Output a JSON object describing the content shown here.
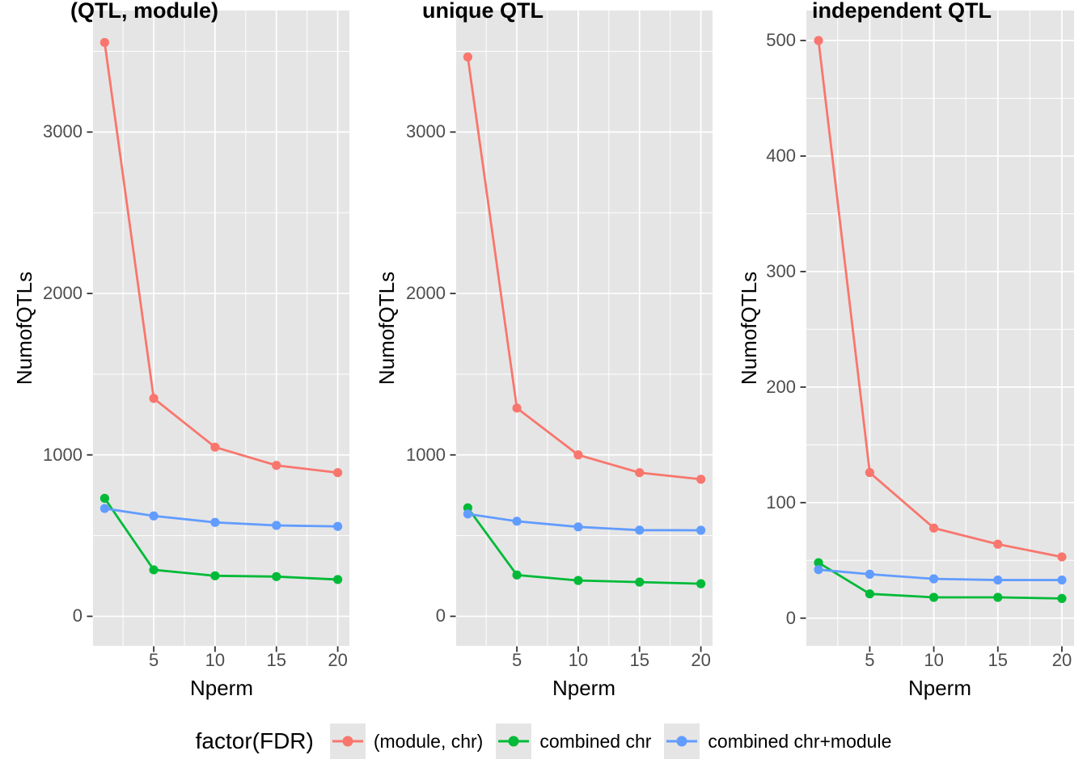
{
  "figure": {
    "x_axis_label": "Nperm",
    "y_axis_label": "NumofQTLs",
    "background_color": "#FFFFFF",
    "panel_background_color": "#E5E5E5",
    "gridline_color": "#FFFFFF",
    "tick_label_color": "#4D4D4D"
  },
  "legend": {
    "title": "factor(FDR)",
    "position": "bottom",
    "items": [
      {
        "label": "(module, chr)",
        "color": "#F8766D"
      },
      {
        "label": "combined chr",
        "color": "#00BA38"
      },
      {
        "label": "combined chr+module",
        "color": "#619CFF"
      }
    ]
  },
  "chart_data": [
    {
      "type": "line",
      "title": "(QTL, module)",
      "xlabel": "Nperm",
      "ylabel": "NumofQTLs",
      "x": [
        1,
        5,
        10,
        15,
        20
      ],
      "x_ticks": [
        5,
        10,
        15,
        20
      ],
      "x_minor": [
        2.5,
        7.5,
        12.5,
        17.5
      ],
      "series": [
        {
          "name": "(module, chr)",
          "color": "#F8766D",
          "values": [
            3555,
            1350,
            1048,
            935,
            890
          ]
        },
        {
          "name": "combined chr",
          "color": "#00BA38",
          "values": [
            731,
            288,
            251,
            246,
            228
          ]
        },
        {
          "name": "combined chr+module",
          "color": "#619CFF",
          "values": [
            668,
            622,
            582,
            563,
            557
          ]
        }
      ],
      "y_ticks": [
        0,
        1000,
        2000,
        3000
      ],
      "y_minor": [
        500,
        1500,
        2500,
        3500
      ],
      "ylim": [
        -183,
        3753
      ],
      "xlim": [
        0.05,
        20.95
      ],
      "grid": true
    },
    {
      "type": "line",
      "title": "unique QTL",
      "xlabel": "Nperm",
      "ylabel": "NumofQTLs",
      "x": [
        1,
        5,
        10,
        15,
        20
      ],
      "x_ticks": [
        5,
        10,
        15,
        20
      ],
      "x_minor": [
        2.5,
        7.5,
        12.5,
        17.5
      ],
      "series": [
        {
          "name": "(module, chr)",
          "color": "#F8766D",
          "values": [
            3465,
            1290,
            1000,
            890,
            849
          ]
        },
        {
          "name": "combined chr",
          "color": "#00BA38",
          "values": [
            672,
            256,
            222,
            212,
            202
          ]
        },
        {
          "name": "combined chr+module",
          "color": "#619CFF",
          "values": [
            634,
            589,
            554,
            534,
            533
          ]
        }
      ],
      "y_ticks": [
        0,
        1000,
        2000,
        3000
      ],
      "y_minor": [
        500,
        1500,
        2500,
        3500
      ],
      "ylim": [
        -183,
        3753
      ],
      "xlim": [
        0.05,
        20.95
      ],
      "grid": true
    },
    {
      "type": "line",
      "title": "independent QTL",
      "xlabel": "Nperm",
      "ylabel": "NumofQTLs",
      "x": [
        1,
        5,
        10,
        15,
        20
      ],
      "x_ticks": [
        5,
        10,
        15,
        20
      ],
      "x_minor": [
        2.5,
        7.5,
        12.5,
        17.5
      ],
      "series": [
        {
          "name": "(module, chr)",
          "color": "#F8766D",
          "values": [
            500,
            126,
            78,
            64,
            53
          ]
        },
        {
          "name": "combined chr",
          "color": "#00BA38",
          "values": [
            48,
            21,
            18,
            18,
            17
          ]
        },
        {
          "name": "combined chr+module",
          "color": "#619CFF",
          "values": [
            42,
            38,
            34,
            33,
            33
          ]
        }
      ],
      "y_ticks": [
        0,
        100,
        200,
        300,
        400,
        500
      ],
      "y_minor": [
        50,
        150,
        250,
        350,
        450
      ],
      "ylim": [
        -24,
        526
      ],
      "xlim": [
        0.05,
        20.95
      ],
      "grid": true
    }
  ]
}
